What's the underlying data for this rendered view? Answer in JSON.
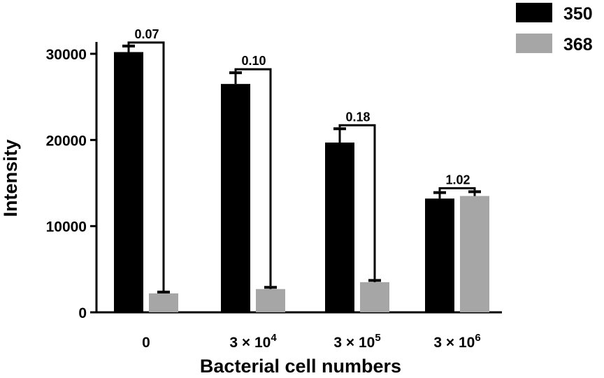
{
  "chart_data": {
    "type": "bar",
    "title": "",
    "xlabel": "Bacterial cell numbers",
    "ylabel": "Intensity",
    "ylim": [
      0,
      32000
    ],
    "yticks": [
      0,
      10000,
      20000,
      30000
    ],
    "ytick_labels": [
      "0",
      "10000",
      "20000",
      "30000"
    ],
    "grid": false,
    "legend_position": "top-right",
    "categories": [
      {
        "base": "0",
        "exp": ""
      },
      {
        "base": "3 × 10",
        "exp": "4"
      },
      {
        "base": "3 × 10",
        "exp": "5"
      },
      {
        "base": "3 × 10",
        "exp": "6"
      }
    ],
    "series": [
      {
        "name": "350",
        "color": "#000000",
        "values": [
          30200,
          26500,
          19700,
          13200
        ],
        "errors": [
          700,
          1300,
          1600,
          700
        ]
      },
      {
        "name": "368",
        "color": "#a6a6a6",
        "values": [
          2200,
          2700,
          3500,
          13500
        ],
        "errors": [
          150,
          200,
          200,
          500
        ]
      }
    ],
    "annotations": [
      {
        "category": 0,
        "label": "0.07"
      },
      {
        "category": 1,
        "label": "0.10"
      },
      {
        "category": 2,
        "label": "0.18"
      },
      {
        "category": 3,
        "label": "1.02"
      }
    ]
  }
}
